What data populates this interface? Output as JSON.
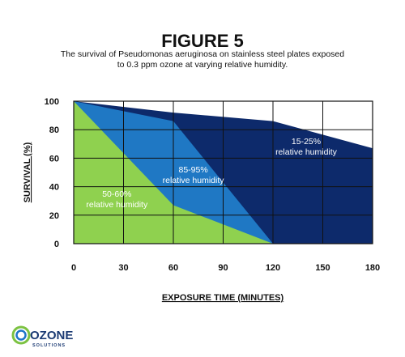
{
  "figure": {
    "title": "FIGURE 5",
    "subtitle_line1": "The survival of Pseudomonas aeruginosa on stainless steel plates exposed",
    "subtitle_line2": "to 0.3 ppm ozone at varying relative humidity."
  },
  "logo": {
    "main": "OZONE",
    "sub": "SOLUTIONS"
  },
  "chart_data": {
    "type": "area",
    "xlabel": "EXPOSURE TIME (MINUTES)",
    "ylabel": "SURVIVAL (%)",
    "xlim": [
      0,
      180
    ],
    "ylim": [
      0,
      100
    ],
    "xticks": [
      0,
      30,
      60,
      90,
      120,
      150,
      180
    ],
    "yticks": [
      0,
      20,
      40,
      60,
      80,
      100
    ],
    "grid": true,
    "series": [
      {
        "name": "15-25% relative humidity",
        "label_line1": "15-25%",
        "label_line2": "relative humidity",
        "label_at": [
          140,
          70
        ],
        "color": "#0d2a6b",
        "x": [
          0,
          60,
          120,
          180
        ],
        "y": [
          100,
          92,
          86,
          67
        ]
      },
      {
        "name": "85-95% relative humidity",
        "label_line1": "85-95%",
        "label_line2": "relative humidity",
        "label_at": [
          72,
          50
        ],
        "color": "#1f78c4",
        "x": [
          0,
          60,
          120
        ],
        "y": [
          100,
          86,
          0
        ]
      },
      {
        "name": "50-60% relative humidity",
        "label_line1": "50-60%",
        "label_line2": "relative humidity",
        "label_at": [
          26,
          33
        ],
        "color": "#8fd14f",
        "x": [
          0,
          60,
          120
        ],
        "y": [
          100,
          27,
          0
        ]
      }
    ]
  },
  "colors": {
    "logo_ring_green": "#7cc242",
    "logo_ring_blue": "#1e76c9",
    "logo_text": "#1b3a73"
  }
}
